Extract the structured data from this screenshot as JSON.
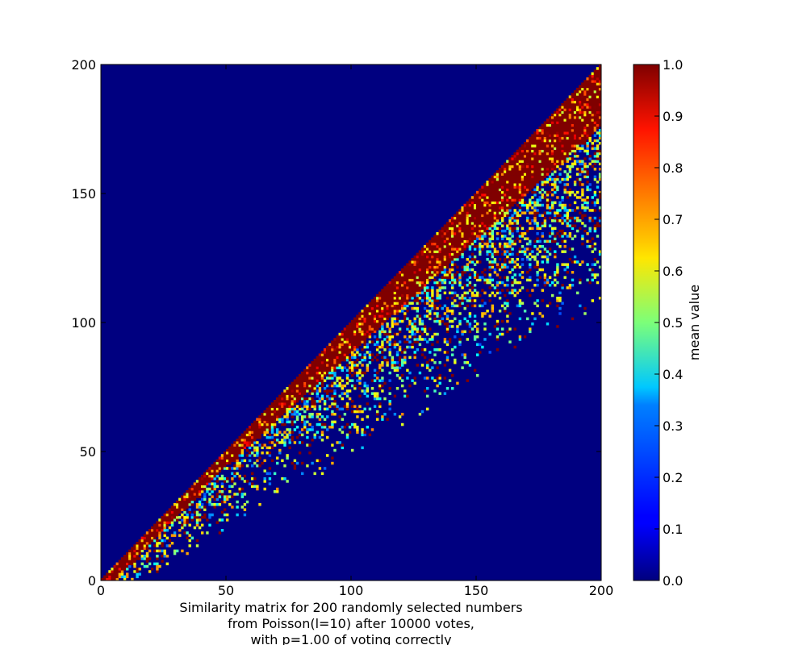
{
  "chart_data": {
    "type": "heatmap",
    "title": "",
    "caption": [
      "Similarity matrix for 200 randomly selected numbers",
      "from Poisson(l=10) after 10000 votes,",
      "with p=1.00 of voting correctly"
    ],
    "xlabel": "",
    "ylabel": "",
    "x_range": [
      0,
      200
    ],
    "y_range": [
      0,
      200
    ],
    "x_ticks": [
      0,
      50,
      100,
      150,
      200
    ],
    "y_ticks": [
      0,
      50,
      100,
      150,
      200
    ],
    "matrix_size": 200,
    "pattern": "lower-right triangle (row index <= column index); cells near the diagonal ~1.0, scattered lower values further from the diagonal, 0 elsewhere",
    "colormap": "jet",
    "colorbar": {
      "label": "mean value",
      "range": [
        0.0,
        1.0
      ],
      "ticks": [
        "0.0",
        "0.1",
        "0.2",
        "0.3",
        "0.4",
        "0.5",
        "0.6",
        "0.7",
        "0.8",
        "0.9",
        "1.0"
      ]
    },
    "grid": false,
    "background_value": 0.0
  }
}
